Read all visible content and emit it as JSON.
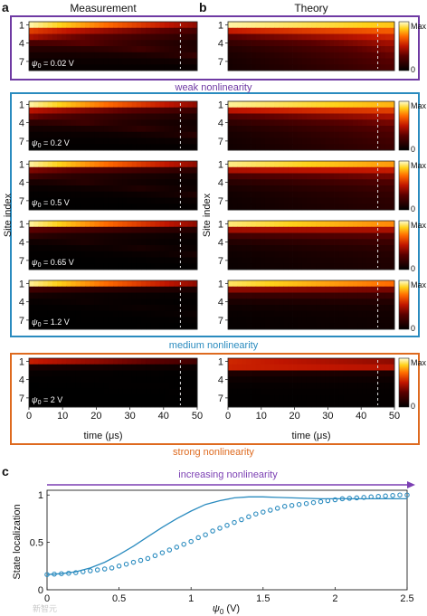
{
  "panel_labels": {
    "a": "a",
    "b": "b",
    "c": "c"
  },
  "column_titles": {
    "measurement": "Measurement",
    "theory": "Theory"
  },
  "axis_text": {
    "site_index": "Site index",
    "time": "time (μs)",
    "site_ticks": [
      "1",
      "4",
      "7"
    ],
    "time_ticks": [
      "0",
      "10",
      "20",
      "30",
      "40",
      "50"
    ]
  },
  "colorbar": {
    "max_label": "Max",
    "min_label": "0",
    "colors": [
      "#000000",
      "#5a0000",
      "#c01500",
      "#ff6a00",
      "#ffd21a",
      "#ffffd8"
    ]
  },
  "regimes": [
    {
      "label": "weak nonlinearity",
      "color": "#6f3aa3"
    },
    {
      "label": "medium nonlinearity",
      "color": "#2a8bbf"
    },
    {
      "label": "strong nonlinearity",
      "color": "#de6a1f"
    }
  ],
  "rows": [
    {
      "psi_text": "= 0.02 V"
    },
    {
      "psi_text": "= 0.2 V"
    },
    {
      "psi_text": "= 0.5 V"
    },
    {
      "psi_text": "= 0.65 V"
    },
    {
      "psi_text": "= 1.2 V"
    },
    {
      "psi_text": "= 2 V"
    }
  ],
  "panel_c": {
    "arrow_label": "increasing nonlinearity",
    "arrow_color": "#7b3fb3",
    "series_color": "#2a8bbf",
    "ylabel": "State localization",
    "xlabel_suffix": " (V)",
    "watermark": "新智元"
  },
  "chart_data": [
    {
      "type": "heatmap",
      "panel": "a",
      "title": "Measurement",
      "xlabel": "time (μs)",
      "ylabel": "Site index",
      "xlim": [
        0,
        50
      ],
      "y_ticks": [
        1,
        4,
        7
      ],
      "marker_time": 45,
      "colorscale": "black-red-yellow-white (0 to Max)",
      "rows_psi_V": [
        0.02,
        0.2,
        0.5,
        0.65,
        1.2,
        2
      ]
    },
    {
      "type": "heatmap",
      "panel": "b",
      "title": "Theory",
      "xlabel": "time (μs)",
      "ylabel": "Site index",
      "xlim": [
        0,
        50
      ],
      "y_ticks": [
        1,
        4,
        7
      ],
      "marker_time": 45,
      "colorscale": "black-red-yellow-white (0 to Max)",
      "rows_psi_V": [
        0.02,
        0.2,
        0.5,
        0.65,
        1.2,
        2
      ]
    },
    {
      "type": "line",
      "panel": "c",
      "xlabel": "ψ0 (V)",
      "ylabel": "State localization",
      "xlim": [
        0,
        2.5
      ],
      "ylim": [
        0,
        1.05
      ],
      "x_ticks": [
        0,
        0.5,
        1,
        1.5,
        2,
        2.5
      ],
      "y_ticks": [
        0,
        0.5,
        1
      ],
      "series": [
        {
          "style": "line",
          "x": [
            0,
            0.1,
            0.2,
            0.3,
            0.4,
            0.5,
            0.6,
            0.7,
            0.8,
            0.9,
            1.0,
            1.1,
            1.2,
            1.3,
            1.4,
            1.5,
            1.6,
            1.7,
            1.8,
            1.9,
            2.0,
            2.2,
            2.5
          ],
          "y": [
            0.16,
            0.17,
            0.19,
            0.23,
            0.29,
            0.37,
            0.46,
            0.56,
            0.66,
            0.75,
            0.83,
            0.9,
            0.94,
            0.97,
            0.98,
            0.98,
            0.975,
            0.97,
            0.965,
            0.96,
            0.96,
            0.96,
            0.96
          ]
        },
        {
          "style": "markers",
          "x": [
            0.0,
            0.05,
            0.1,
            0.15,
            0.2,
            0.25,
            0.3,
            0.35,
            0.4,
            0.45,
            0.5,
            0.55,
            0.6,
            0.65,
            0.7,
            0.75,
            0.8,
            0.85,
            0.9,
            0.95,
            1.0,
            1.05,
            1.1,
            1.15,
            1.2,
            1.25,
            1.3,
            1.35,
            1.4,
            1.45,
            1.5,
            1.55,
            1.6,
            1.65,
            1.7,
            1.75,
            1.8,
            1.85,
            1.9,
            1.95,
            2.0,
            2.05,
            2.1,
            2.15,
            2.2,
            2.25,
            2.3,
            2.35,
            2.4,
            2.45,
            2.5
          ],
          "y": [
            0.16,
            0.165,
            0.17,
            0.175,
            0.18,
            0.19,
            0.2,
            0.21,
            0.22,
            0.23,
            0.25,
            0.27,
            0.29,
            0.31,
            0.33,
            0.36,
            0.39,
            0.42,
            0.45,
            0.48,
            0.51,
            0.55,
            0.58,
            0.62,
            0.65,
            0.68,
            0.71,
            0.74,
            0.77,
            0.8,
            0.82,
            0.84,
            0.86,
            0.88,
            0.89,
            0.9,
            0.91,
            0.92,
            0.93,
            0.94,
            0.95,
            0.96,
            0.965,
            0.97,
            0.975,
            0.98,
            0.985,
            0.99,
            0.995,
            1.0,
            1.0
          ]
        }
      ]
    }
  ]
}
